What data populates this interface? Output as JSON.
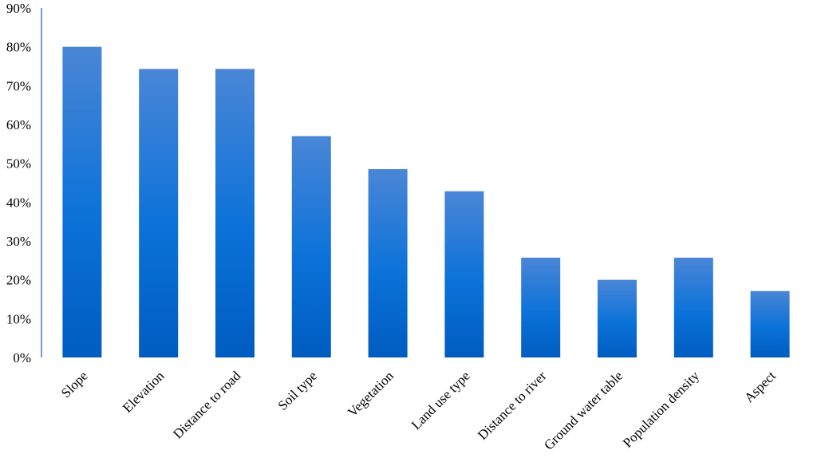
{
  "chart_data": {
    "type": "bar",
    "title": "",
    "xlabel": "",
    "ylabel": "",
    "categories": [
      "Slope",
      "Elevation",
      "Distance to road",
      "Soil type",
      "Vegetation",
      "Land use type",
      "Distance to river",
      "Ground water table",
      "Population density",
      "Aspect"
    ],
    "values": [
      80,
      74.3,
      74.3,
      57,
      48.5,
      42.8,
      25.7,
      20,
      25.7,
      17.1
    ],
    "unit": "%",
    "ylim": [
      0,
      90
    ],
    "yticks": [
      "0%",
      "10%",
      "20%",
      "30%",
      "40%",
      "50%",
      "60%",
      "70%",
      "80%",
      "90%"
    ],
    "grid": false,
    "legend": "none",
    "colors": {
      "bar_top": "#4a86d6",
      "bar_mid": "#0b72d9",
      "bar_bottom": "#005cc0",
      "axis": "#3b7dd8"
    }
  }
}
